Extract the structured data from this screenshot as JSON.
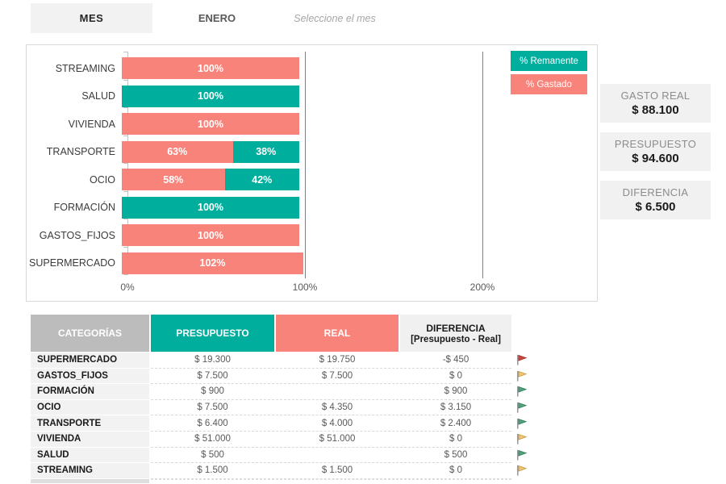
{
  "header": {
    "tab_mes": "MES",
    "month": "ENERO",
    "hint": "Seleccione el mes"
  },
  "colors": {
    "teal": "#00AE9D",
    "salmon": "#F8837B",
    "grid": "#808080",
    "tab_bg": "#F2F2F2",
    "card_bg": "#F1F1F1",
    "header_gray": "#BCBCBC",
    "flags": {
      "red": {
        "fill": "#C9463D",
        "stroke": "#A3362E"
      },
      "amber": {
        "fill": "#F0C573",
        "stroke": "#C79B49"
      },
      "green": {
        "fill": "#4FA27C",
        "stroke": "#3A7F60"
      }
    }
  },
  "chart_data": {
    "type": "bar",
    "orientation": "horizontal",
    "stacked": true,
    "x_ticks": [
      "0%",
      "100%",
      "200%"
    ],
    "xlim": [
      0,
      265
    ],
    "grid": "vertical at 100% and 200%",
    "legend": [
      "% Remanente",
      "% Gastado"
    ],
    "legend_position": "top-right",
    "categories": [
      "STREAMING",
      "SALUD",
      "VIVIENDA",
      "TRANSPORTE",
      "OCIO",
      "FORMACIÓN",
      "GASTOS_FIJOS",
      "SUPERMERCADO"
    ],
    "series": [
      {
        "name": "% Gastado",
        "color": "#F8837B",
        "values": [
          100,
          0,
          100,
          62.5,
          58,
          0,
          100,
          102.3
        ]
      },
      {
        "name": "% Remanente",
        "color": "#00AE9D",
        "values": [
          0,
          100,
          0,
          37.5,
          42,
          100,
          0,
          0
        ]
      }
    ],
    "bars": [
      {
        "category": "STREAMING",
        "gastado_geo": 100,
        "gastado_label": "100%",
        "remanente_geo": 0,
        "remanente_label": ""
      },
      {
        "category": "SALUD",
        "gastado_geo": 0,
        "gastado_label": "",
        "remanente_geo": 100,
        "remanente_label": "100%"
      },
      {
        "category": "VIVIENDA",
        "gastado_geo": 100,
        "gastado_label": "100%",
        "remanente_geo": 0,
        "remanente_label": ""
      },
      {
        "category": "TRANSPORTE",
        "gastado_geo": 62.5,
        "gastado_label": "63%",
        "remanente_geo": 37.5,
        "remanente_label": "38%"
      },
      {
        "category": "OCIO",
        "gastado_geo": 58,
        "gastado_label": "58%",
        "remanente_geo": 42,
        "remanente_label": "42%"
      },
      {
        "category": "FORMACIÓN",
        "gastado_geo": 0,
        "gastado_label": "",
        "remanente_geo": 100,
        "remanente_label": "100%"
      },
      {
        "category": "GASTOS_FIJOS",
        "gastado_geo": 100,
        "gastado_label": "100%",
        "remanente_geo": 0,
        "remanente_label": ""
      },
      {
        "category": "SUPERMERCADO",
        "gastado_geo": 102.3,
        "gastado_label": "102%",
        "remanente_geo": 0,
        "remanente_label": ""
      }
    ]
  },
  "cards": [
    {
      "label": "GASTO REAL",
      "value": "$ 88.100"
    },
    {
      "label": "PRESUPUESTO",
      "value": "$ 94.600"
    },
    {
      "label": "DIFERENCIA",
      "value": "$ 6.500"
    }
  ],
  "table": {
    "headers": {
      "categorias": "CATEGORÍAS",
      "presupuesto": "PRESUPUESTO",
      "real": "REAL",
      "diferencia_line1": "DIFERENCIA",
      "diferencia_line2": "[Presupuesto - Real]"
    },
    "rows": [
      {
        "category": "SUPERMERCADO",
        "presupuesto": "$ 19.300",
        "real": "$ 19.750",
        "diferencia": "-$ 450",
        "flag": "red"
      },
      {
        "category": "GASTOS_FIJOS",
        "presupuesto": "$ 7.500",
        "real": "$ 7.500",
        "diferencia": "$ 0",
        "flag": "amber"
      },
      {
        "category": "FORMACIÓN",
        "presupuesto": "$ 900",
        "real": "",
        "diferencia": "$ 900",
        "flag": "green"
      },
      {
        "category": "OCIO",
        "presupuesto": "$ 7.500",
        "real": "$ 4.350",
        "diferencia": "$ 3.150",
        "flag": "green"
      },
      {
        "category": "TRANSPORTE",
        "presupuesto": "$ 6.400",
        "real": "$ 4.000",
        "diferencia": "$ 2.400",
        "flag": "green"
      },
      {
        "category": "VIVIENDA",
        "presupuesto": "$ 51.000",
        "real": "$ 51.000",
        "diferencia": "$ 0",
        "flag": "amber"
      },
      {
        "category": "SALUD",
        "presupuesto": "$ 500",
        "real": "",
        "diferencia": "$ 500",
        "flag": "green"
      },
      {
        "category": "STREAMING",
        "presupuesto": "$ 1.500",
        "real": "$ 1.500",
        "diferencia": "$ 0",
        "flag": "amber"
      }
    ]
  }
}
